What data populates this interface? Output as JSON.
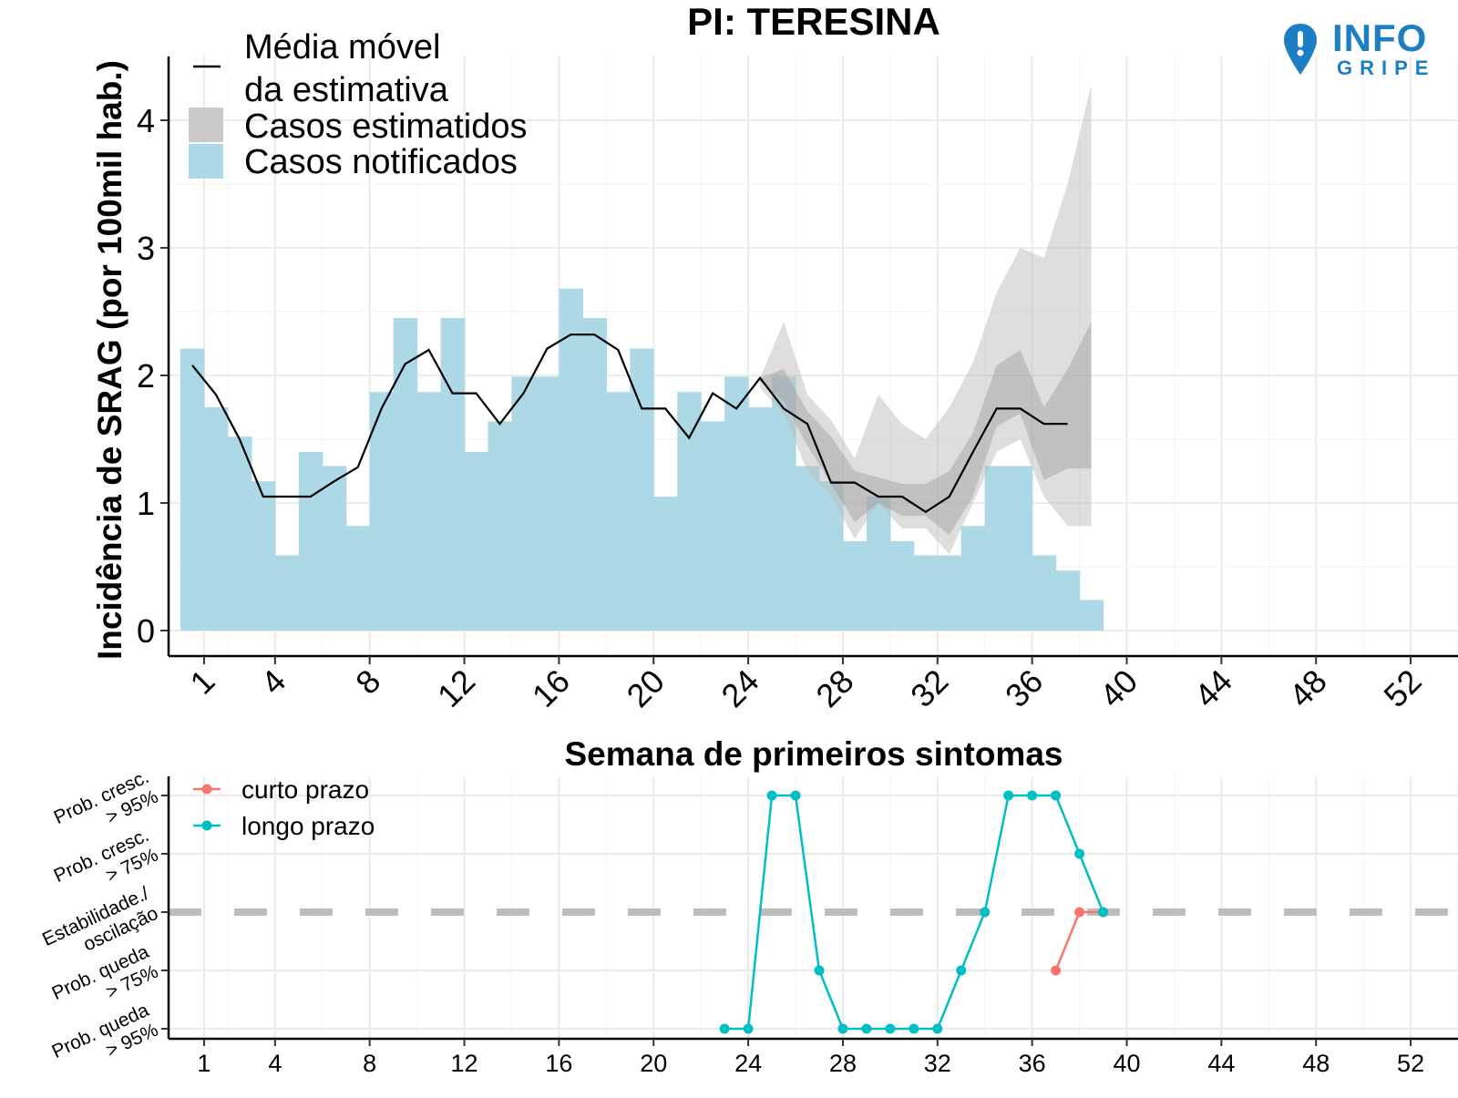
{
  "title": "PI: TERESINA",
  "logo": {
    "line1": "INFO",
    "line2": "GRIPE"
  },
  "colors": {
    "notified": "#add8e6",
    "band_outer": "#e0e0e0",
    "band_inner": "#bdbdbd",
    "short_term": "#f8766d",
    "long_term": "#00bfc4",
    "line": "#000000"
  },
  "chart_data": [
    {
      "type": "bar",
      "title": "PI: TERESINA",
      "xlabel": "Semana de primeiros sintomas",
      "ylabel": "Incidência de SRAG (por 100mil hab.)",
      "xlim": [
        -0.5,
        54
      ],
      "ylim": [
        -0.2,
        4.5
      ],
      "xticks": [
        1,
        4,
        8,
        12,
        16,
        20,
        24,
        28,
        32,
        36,
        40,
        44,
        48,
        52
      ],
      "yticks": [
        0,
        1,
        2,
        3,
        4
      ],
      "grid": true,
      "legend_position": "top-left",
      "legend": [
        "Média móvel\nda estimativa",
        "Casos estimatidos",
        "Casos notificados"
      ],
      "notified": {
        "name": "Casos notificados",
        "x": [
          0,
          1,
          2,
          3,
          4,
          5,
          6,
          7,
          8,
          9,
          10,
          11,
          12,
          13,
          14,
          15,
          16,
          17,
          18,
          19,
          20,
          21,
          22,
          23,
          24,
          25,
          26,
          27,
          28,
          29,
          30,
          31,
          32,
          33,
          34,
          35,
          36,
          37,
          38
        ],
        "values": [
          2.21,
          1.75,
          1.52,
          1.17,
          0.59,
          1.4,
          1.29,
          0.82,
          1.87,
          2.45,
          1.87,
          2.45,
          1.4,
          1.64,
          1.99,
          1.99,
          2.68,
          2.45,
          1.87,
          2.21,
          1.05,
          1.87,
          1.64,
          1.99,
          1.75,
          1.99,
          1.29,
          1.17,
          0.7,
          1.05,
          0.7,
          0.59,
          0.59,
          0.82,
          1.29,
          1.29,
          0.59,
          0.47,
          0.24
        ]
      },
      "moving_average": {
        "name": "Média móvel da estimativa",
        "x": [
          0.5,
          1.5,
          2.5,
          3.5,
          4.5,
          5.5,
          6.5,
          7.5,
          8.5,
          9.5,
          10.5,
          11.5,
          12.5,
          13.5,
          14.5,
          15.5,
          16.5,
          17.5,
          18.5,
          19.5,
          20.5,
          21.5,
          22.5,
          23.5,
          24.5,
          25.5,
          26.5,
          27.5,
          28.5,
          29.5,
          30.5,
          31.5,
          32.5,
          33.5,
          34.5,
          35.5,
          36.5,
          37.5
        ],
        "values": [
          2.08,
          1.85,
          1.5,
          1.05,
          1.05,
          1.05,
          1.17,
          1.28,
          1.74,
          2.09,
          2.2,
          1.86,
          1.86,
          1.62,
          1.86,
          2.21,
          2.32,
          2.32,
          2.2,
          1.74,
          1.74,
          1.51,
          1.86,
          1.74,
          1.98,
          1.74,
          1.62,
          1.16,
          1.16,
          1.05,
          1.05,
          0.93,
          1.05,
          1.4,
          1.74,
          1.74,
          1.62,
          1.62
        ]
      },
      "estimate_band": {
        "name": "Casos estimatidos",
        "x": [
          24.5,
          25.5,
          26.5,
          27.5,
          28.5,
          29.5,
          30.5,
          31.5,
          32.5,
          33.5,
          34.5,
          35.5,
          36.5,
          37.5,
          38.5
        ],
        "outer_low": [
          1.9,
          1.7,
          1.25,
          1.05,
          0.72,
          1.0,
          0.8,
          0.8,
          0.6,
          1.0,
          1.4,
          1.5,
          1.05,
          0.82,
          0.82
        ],
        "outer_high": [
          1.98,
          2.42,
          1.85,
          1.65,
          1.35,
          1.85,
          1.62,
          1.5,
          1.75,
          2.1,
          2.65,
          3.0,
          2.92,
          3.5,
          4.28
        ],
        "inner_low": [
          1.95,
          1.8,
          1.45,
          1.15,
          0.85,
          1.0,
          0.9,
          0.9,
          0.75,
          1.05,
          1.6,
          1.7,
          1.18,
          1.27,
          1.27
        ],
        "inner_high": [
          1.98,
          2.05,
          1.72,
          1.52,
          1.25,
          1.2,
          1.15,
          1.15,
          1.25,
          1.55,
          2.08,
          2.2,
          1.75,
          2.05,
          2.42
        ]
      }
    },
    {
      "type": "line",
      "xlim": [
        -0.5,
        54
      ],
      "xticks": [
        1,
        4,
        8,
        12,
        16,
        20,
        24,
        28,
        32,
        36,
        40,
        44,
        48,
        52
      ],
      "levels": [
        "Prob. queda\n> 95%",
        "Prob. queda\n> 75%",
        "Estabilidade./\noscilação",
        "Prob. cresc.\n> 75%",
        "Prob. cresc.\n> 95%"
      ],
      "reference_level": "Estabilidade./\noscilação",
      "grid": true,
      "legend_position": "top-left",
      "series": [
        {
          "name": "curto prazo",
          "x": [
            37,
            38,
            39
          ],
          "values": [
            -1,
            0,
            0
          ]
        },
        {
          "name": "longo prazo",
          "x": [
            23,
            24,
            25,
            26,
            27,
            28,
            29,
            30,
            31,
            32,
            33,
            34,
            35,
            36,
            37,
            38,
            39
          ],
          "values": [
            -2,
            -2,
            2,
            2,
            -1,
            -2,
            -2,
            -2,
            -2,
            -2,
            -1,
            0,
            2,
            2,
            2,
            1,
            0
          ]
        }
      ]
    }
  ]
}
